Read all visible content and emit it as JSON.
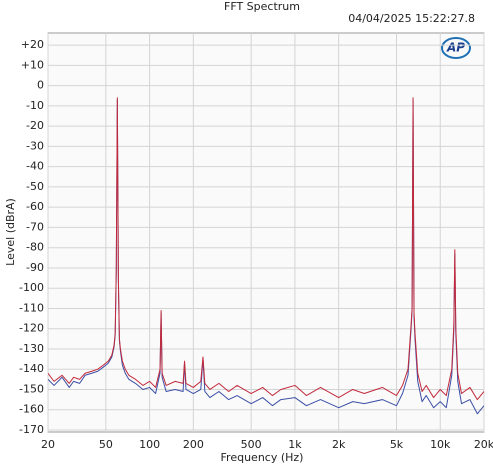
{
  "chart_data": {
    "type": "line",
    "title": "FFT Spectrum",
    "timestamp": "04/04/2025 15:22:27.8",
    "logo": "AP",
    "ylabel": "Level (dBrA)",
    "xlabel": "Frequency (Hz)",
    "log_x": true,
    "grid": true,
    "xlim": [
      20,
      20000
    ],
    "ylim": [
      -171,
      26
    ],
    "xticks": [
      20,
      50,
      100,
      200,
      500,
      {
        "value": 1000,
        "label": "1k"
      },
      {
        "value": 2000,
        "label": "2k"
      },
      {
        "value": 5000,
        "label": "5k"
      },
      {
        "value": 10000,
        "label": "10k"
      },
      {
        "value": 20000,
        "label": "20k"
      }
    ],
    "yticks": [
      {
        "value": 20,
        "label": "+20"
      },
      {
        "value": 10,
        "label": "+10"
      },
      0,
      -10,
      -20,
      -30,
      -40,
      -50,
      -60,
      -70,
      -80,
      -90,
      -100,
      -110,
      -120,
      -130,
      -140,
      -150,
      -160,
      -170
    ],
    "x": [
      20,
      22,
      25,
      28,
      30,
      33,
      36,
      40,
      44,
      48,
      52,
      55,
      57,
      58,
      59,
      60,
      61,
      62,
      63,
      65,
      68,
      72,
      80,
      90,
      100,
      110,
      118,
      120,
      122,
      130,
      150,
      170,
      174,
      178,
      200,
      225,
      233,
      240,
      260,
      300,
      350,
      400,
      500,
      600,
      700,
      800,
      1000,
      1200,
      1500,
      2000,
      2500,
      3000,
      4000,
      5000,
      5500,
      6000,
      6300,
      6400,
      6500,
      6600,
      6700,
      7000,
      7500,
      8000,
      9000,
      10000,
      11000,
      12000,
      12400,
      12600,
      12800,
      13200,
      14000,
      16000,
      18000,
      20000
    ],
    "series": [
      {
        "color": "#3b4fa6",
        "values": [
          -145,
          -148,
          -144,
          -149,
          -146,
          -147,
          -143,
          -142,
          -141,
          -139,
          -137,
          -134,
          -129,
          -123,
          -92,
          -7,
          -97,
          -126,
          -131,
          -138,
          -142,
          -145,
          -147,
          -150,
          -149,
          -152,
          -142,
          -112,
          -144,
          -151,
          -150,
          -151,
          -137,
          -150,
          -152,
          -150,
          -135,
          -151,
          -154,
          -151,
          -155,
          -153,
          -157,
          -154,
          -158,
          -155,
          -154,
          -158,
          -155,
          -159,
          -156,
          -157,
          -155,
          -158,
          -152,
          -143,
          -120,
          -111,
          -7,
          -114,
          -125,
          -146,
          -156,
          -153,
          -159,
          -156,
          -159,
          -143,
          -121,
          -83,
          -123,
          -146,
          -157,
          -155,
          -162,
          -158
        ]
      },
      {
        "color": "#c22a3c",
        "values": [
          -142,
          -146,
          -143,
          -147,
          -144,
          -145,
          -142,
          -141,
          -140,
          -138,
          -136,
          -133,
          -128,
          -122,
          -90,
          -6,
          -95,
          -125,
          -130,
          -136,
          -140,
          -143,
          -145,
          -148,
          -146,
          -149,
          -140,
          -111,
          -142,
          -148,
          -146,
          -147,
          -136,
          -147,
          -149,
          -146,
          -134,
          -147,
          -150,
          -147,
          -151,
          -148,
          -152,
          -149,
          -153,
          -150,
          -148,
          -153,
          -149,
          -154,
          -150,
          -152,
          -149,
          -153,
          -148,
          -140,
          -118,
          -110,
          -6,
          -112,
          -122,
          -142,
          -151,
          -148,
          -154,
          -150,
          -153,
          -140,
          -118,
          -81,
          -120,
          -142,
          -152,
          -149,
          -155,
          -151
        ]
      }
    ]
  }
}
